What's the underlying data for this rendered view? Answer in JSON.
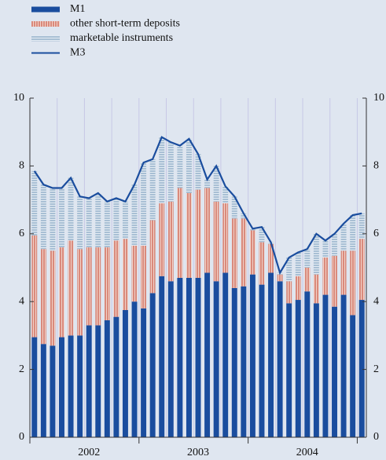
{
  "chart_data": {
    "type": "stacked_bar_line",
    "categories": [
      null,
      null,
      null,
      null,
      null,
      null,
      null,
      null,
      null,
      null,
      null,
      null,
      null,
      null,
      null,
      null,
      null,
      null,
      null,
      null,
      null,
      null,
      null,
      null,
      null,
      null,
      null,
      null,
      null,
      null,
      null,
      null,
      null,
      null,
      null,
      null,
      null
    ],
    "year_labels": [
      "2002",
      "2003",
      "2004"
    ],
    "series": [
      {
        "name": "M1",
        "kind": "bar",
        "color": "#1a4d9e",
        "values": [
          2.95,
          2.75,
          2.7,
          2.95,
          3.0,
          3.0,
          3.3,
          3.3,
          3.45,
          3.55,
          3.75,
          4.0,
          3.8,
          4.25,
          4.75,
          4.6,
          4.7,
          4.7,
          4.7,
          4.85,
          4.6,
          4.85,
          4.4,
          4.45,
          4.8,
          4.5,
          4.85,
          4.6,
          3.95,
          4.05,
          4.3,
          3.95,
          4.2,
          3.85,
          4.2,
          3.6,
          4.05
        ]
      },
      {
        "name": "other short-term deposits",
        "kind": "bar",
        "color": "#d98a7c",
        "values": [
          3.0,
          2.8,
          2.8,
          2.65,
          2.8,
          2.55,
          2.3,
          2.3,
          2.15,
          2.25,
          2.1,
          1.65,
          1.85,
          2.15,
          2.15,
          2.35,
          2.65,
          2.5,
          2.6,
          2.5,
          2.35,
          2.05,
          2.05,
          2.0,
          1.3,
          1.25,
          0.85,
          0.2,
          0.65,
          0.7,
          0.7,
          0.85,
          1.1,
          1.5,
          1.3,
          1.9,
          1.8
        ]
      },
      {
        "name": "marketable instruments",
        "kind": "bar",
        "color": "#a8bfd4",
        "values": [
          1.9,
          1.9,
          1.85,
          1.75,
          1.85,
          1.55,
          1.45,
          1.6,
          1.35,
          1.25,
          1.1,
          1.8,
          2.45,
          1.8,
          1.95,
          1.75,
          1.25,
          1.6,
          1.05,
          0.25,
          1.05,
          0.5,
          0.65,
          0.15,
          0.05,
          0.45,
          0.05,
          0.05,
          0.7,
          0.7,
          0.55,
          1.2,
          0.5,
          0.65,
          0.8,
          1.05,
          0.75
        ]
      },
      {
        "name": "M3",
        "kind": "line",
        "color": "#1a4d9e",
        "values": [
          7.85,
          7.45,
          7.35,
          7.35,
          7.65,
          7.1,
          7.05,
          7.2,
          6.95,
          7.05,
          6.95,
          7.45,
          8.1,
          8.2,
          8.85,
          8.7,
          8.6,
          8.8,
          8.35,
          7.6,
          8.0,
          7.4,
          7.1,
          6.6,
          6.15,
          6.2,
          5.75,
          4.85,
          5.3,
          5.45,
          5.55,
          6.0,
          5.8,
          6.0,
          6.3,
          6.55,
          6.6
        ]
      }
    ],
    "ylim": [
      0,
      10
    ],
    "yticks": [
      0,
      2,
      4,
      6,
      8,
      10
    ]
  }
}
